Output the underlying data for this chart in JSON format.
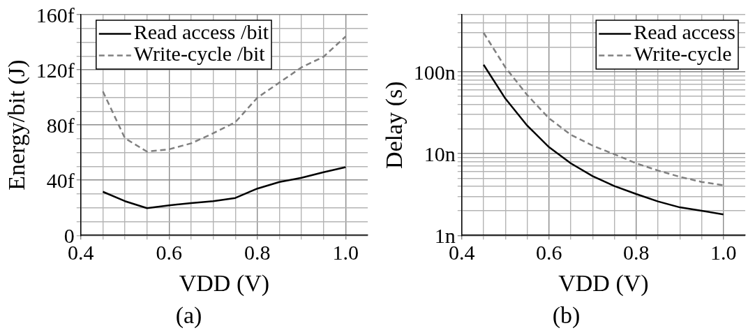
{
  "chart_data": [
    {
      "type": "line",
      "xlabel": "VDD (V)",
      "ylabel": "Energy/bit (J)",
      "annotations": [
        "(a)"
      ],
      "legend": "top left",
      "grid": true,
      "x": [
        0.45,
        0.5,
        0.55,
        0.6,
        0.65,
        0.7,
        0.75,
        0.8,
        0.85,
        0.9,
        0.95,
        1.0
      ],
      "xlim": [
        0.4,
        1.05
      ],
      "xticks": [
        0.4,
        {
          "value": 0.45,
          "label": null
        },
        {
          "value": 0.5,
          "label": null
        },
        {
          "value": 0.55,
          "label": null
        },
        0.6,
        {
          "value": 0.65,
          "label": null
        },
        {
          "value": 0.7,
          "label": null
        },
        {
          "value": 0.75,
          "label": null
        },
        0.8,
        {
          "value": 0.85,
          "label": null
        },
        {
          "value": 0.9,
          "label": null
        },
        {
          "value": 0.95,
          "label": null
        },
        {
          "value": 1.0,
          "label": "1.0"
        }
      ],
      "ylim": [
        0,
        160
      ],
      "yticks": [
        0,
        {
          "value": 10,
          "label": null
        },
        {
          "value": 20,
          "label": null
        },
        {
          "value": 30,
          "label": null
        },
        {
          "value": 40,
          "label": "40f"
        },
        {
          "value": 50,
          "label": null
        },
        {
          "value": 60,
          "label": null
        },
        {
          "value": 70,
          "label": null
        },
        {
          "value": 80,
          "label": "80f"
        },
        {
          "value": 90,
          "label": null
        },
        {
          "value": 100,
          "label": null
        },
        {
          "value": 110,
          "label": null
        },
        {
          "value": 120,
          "label": "120f"
        },
        {
          "value": 130,
          "label": null
        },
        {
          "value": 140,
          "label": null
        },
        {
          "value": 150,
          "label": null
        },
        {
          "value": 160,
          "label": "160f"
        }
      ],
      "series": [
        {
          "name": "Read access /bit",
          "color": "#000000",
          "line_style": "solid",
          "values": [
            31.6,
            24.8,
            19.7,
            21.7,
            23.4,
            24.8,
            27.1,
            33.9,
            38.7,
            41.7,
            45.8,
            49.4
          ]
        },
        {
          "name": "Write-cycle /bit",
          "color": "#808080",
          "line_style": "dashed",
          "values": [
            104.3,
            70.4,
            60.7,
            62.4,
            66.7,
            74,
            82,
            99.8,
            110.8,
            121.8,
            129.5,
            144.2
          ]
        }
      ]
    },
    {
      "type": "line",
      "xlabel": "VDD (V)",
      "ylabel": "Delay (s)",
      "annotations": [
        "(b)"
      ],
      "legend": "top right",
      "grid": true,
      "log": "y",
      "x": [
        0.45,
        0.5,
        0.55,
        0.6,
        0.65,
        0.7,
        0.75,
        0.8,
        0.85,
        0.9,
        0.95,
        1.0
      ],
      "xlim": [
        0.4,
        1.05
      ],
      "xticks": [
        0.4,
        {
          "value": 0.45,
          "label": null
        },
        {
          "value": 0.5,
          "label": null
        },
        {
          "value": 0.55,
          "label": null
        },
        0.6,
        {
          "value": 0.65,
          "label": null
        },
        {
          "value": 0.7,
          "label": null
        },
        {
          "value": 0.75,
          "label": null
        },
        0.8,
        {
          "value": 0.85,
          "label": null
        },
        {
          "value": 0.9,
          "label": null
        },
        {
          "value": 0.95,
          "label": null
        },
        {
          "value": 1.0,
          "label": "1.0"
        }
      ],
      "ylim": [
        1,
        500
      ],
      "yticks": [
        {
          "value": 1,
          "label": "1n"
        },
        {
          "value": 2,
          "label": null
        },
        {
          "value": 3,
          "label": null
        },
        {
          "value": 4,
          "label": null
        },
        {
          "value": 5,
          "label": null
        },
        {
          "value": 6,
          "label": null
        },
        {
          "value": 7,
          "label": null
        },
        {
          "value": 8,
          "label": null
        },
        {
          "value": 9,
          "label": null
        },
        {
          "value": 10,
          "label": "10n"
        },
        {
          "value": 20,
          "label": null
        },
        {
          "value": 30,
          "label": null
        },
        {
          "value": 40,
          "label": null
        },
        {
          "value": 50,
          "label": null
        },
        {
          "value": 60,
          "label": null
        },
        {
          "value": 70,
          "label": null
        },
        {
          "value": 80,
          "label": null
        },
        {
          "value": 90,
          "label": null
        },
        {
          "value": 100,
          "label": "100n"
        },
        {
          "value": 200,
          "label": null
        },
        {
          "value": 300,
          "label": null
        },
        {
          "value": 400,
          "label": null
        },
        {
          "value": 500,
          "label": null
        }
      ],
      "series": [
        {
          "name": "Read access",
          "color": "#000000",
          "line_style": "solid",
          "values": [
            122,
            47,
            22,
            12,
            7.6,
            5.3,
            4.0,
            3.2,
            2.6,
            2.2,
            2.0,
            1.8
          ]
        },
        {
          "name": "Write-cycle",
          "color": "#808080",
          "line_style": "dashed",
          "values": [
            300,
            113,
            52,
            27,
            17,
            12.5,
            9.8,
            7.6,
            6.2,
            5.2,
            4.5,
            4.1
          ]
        }
      ]
    }
  ]
}
